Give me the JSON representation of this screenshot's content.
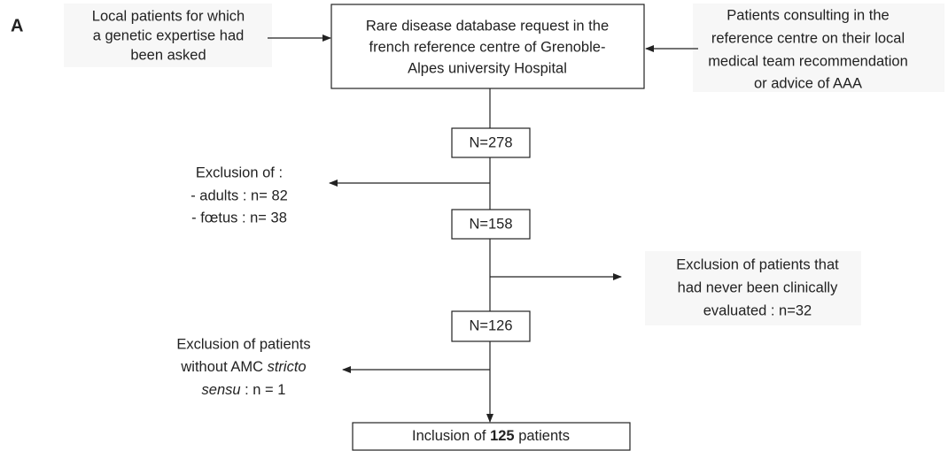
{
  "panel_label": "A",
  "sources": {
    "left": [
      "Local patients for which",
      "a genetic expertise had",
      "been asked"
    ],
    "right": [
      "Patients consulting in the",
      "reference centre on their local",
      "medical team recommendation",
      "or advice of AAA"
    ]
  },
  "nodes": [
    {
      "lines": [
        "Rare disease database request in the",
        "french reference centre of Grenoble-",
        "Alpes university Hospital"
      ]
    },
    {
      "label": "N=278"
    },
    {
      "label": "N=158"
    },
    {
      "label": "N=126"
    },
    {
      "prefix": "Inclusion of ",
      "count": "125",
      "suffix": " patients"
    }
  ],
  "exclusions": [
    {
      "lines": [
        "Exclusion of :",
        "- adults : n= 82",
        "- fœtus : n= 38"
      ]
    },
    {
      "lines": [
        "Exclusion of patients that",
        "had never been clinically",
        "evaluated : n=32"
      ]
    },
    {
      "lines": [
        [
          "Exclusion of patients"
        ],
        [
          "without AMC ",
          "stricto"
        ],
        [
          "sensu",
          " : n = 1"
        ]
      ]
    }
  ]
}
